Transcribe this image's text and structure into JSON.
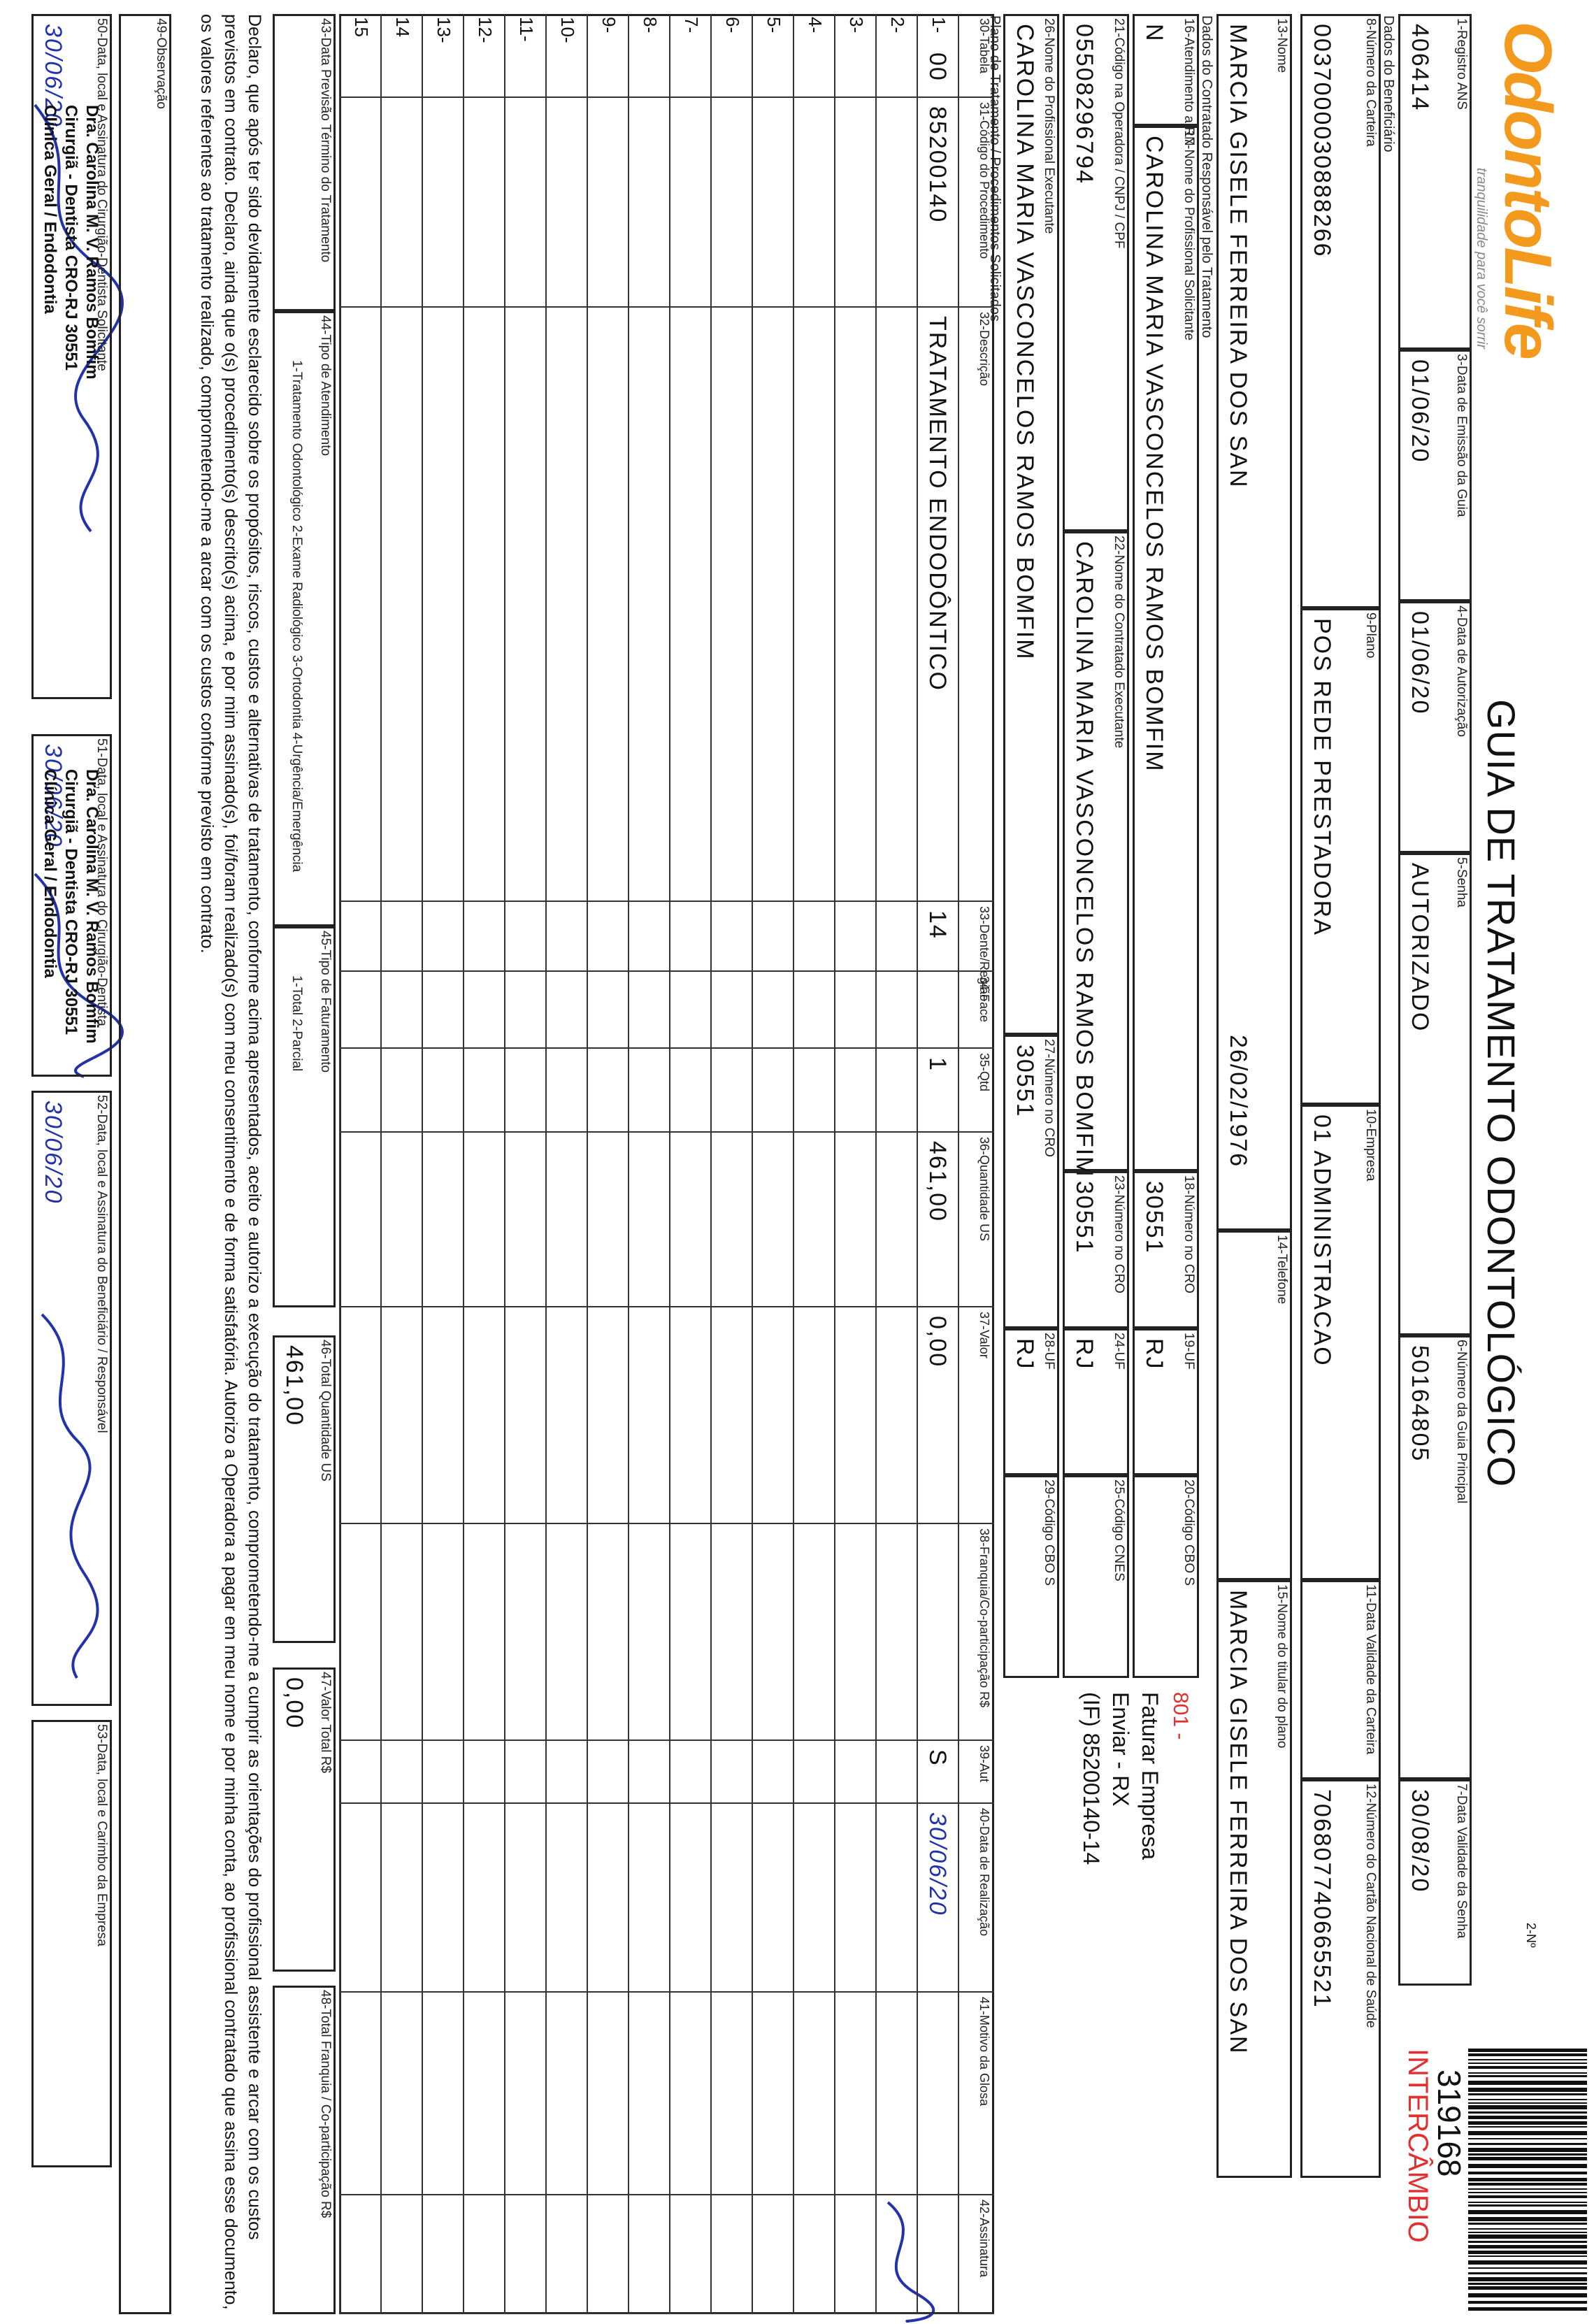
{
  "header": {
    "logo": "OdontoLife",
    "tagline": "tranquilidade para você sorrir",
    "title": "GUIA DE TRATAMENTO ODONTOLÓGICO",
    "number_label": "2-Nº",
    "number": "319168",
    "tag": "INTERCÂMBIO"
  },
  "sections": {
    "beneficiary": "Dados do Beneficiário",
    "contractor": "Dados do Contratado Responsável pelo Tratamento",
    "plan": "Plano de Tratamento / Procedimentos Solicitados"
  },
  "fields": [
    {
      "label": "1-Registro ANS",
      "value": "406414"
    },
    {
      "label": "3-Data de Emissão da Guia",
      "value": "01/06/20"
    },
    {
      "label": "4-Data de Autorização",
      "value": "01/06/20"
    },
    {
      "label": "5-Senha",
      "value": "AUTORIZADO"
    },
    {
      "label": "6-Número da Guia Principal",
      "value": "50164805"
    },
    {
      "label": "7-Data Validade da Senha",
      "value": "30/08/20"
    },
    {
      "label": "8-Número da Carteira",
      "value": "0037000030888266"
    },
    {
      "label": "9-Plano",
      "value": "POS REDE PRESTADORA"
    },
    {
      "label": "10-Empresa",
      "value": "01 ADMINISTRACAO"
    },
    {
      "label": "11-Data Validade da Carteira"
    },
    {
      "label": "12-Número do Cartão Nacional de Saúde",
      "value": "706807740665521"
    },
    {
      "label": "13-Nome",
      "value": "MARCIA GISELE FERREIRA DOS SAN",
      "extra": "26/02/1976"
    },
    {
      "label": "14-Telefone"
    },
    {
      "label": "15-Nome do titular do plano",
      "value": "MARCIA GISELE FERREIRA DOS SAN"
    },
    {
      "label": "16-Atendimento a RN",
      "value": "N"
    },
    {
      "label": "17-Nome do Profissional Solicitante",
      "value": "CAROLINA MARIA VASCONCELOS RAMOS BOMFIM"
    },
    {
      "label": "18-Número no CRO",
      "value": "30551"
    },
    {
      "label": "19-UF",
      "value": "RJ"
    },
    {
      "label": "20-Código CBO S"
    },
    {
      "label": "21-Código na Operadora / CNPJ / CPF",
      "value": "05508296794"
    },
    {
      "label": "22-Nome do Contratado Executante",
      "value": "CAROLINA MARIA VASCONCELOS RAMOS BOMFIM"
    },
    {
      "label": "23-Número no CRO",
      "value": "30551"
    },
    {
      "label": "24-UF",
      "value": "RJ"
    },
    {
      "label": "25-Código CNES"
    },
    {
      "label": "26-Nome do Profissional Executante",
      "value": "CAROLINA MARIA VASCONCELOS RAMOS BOMFIM"
    },
    {
      "label": "27-Número no CRO",
      "value": "30551"
    },
    {
      "label": "28-UF",
      "value": "RJ"
    },
    {
      "label": "29-Código CBO S"
    },
    {
      "label": "43-Data Previsão Término do Tratamento"
    },
    {
      "label": "44-Tipo de Atendimento",
      "options": "1-Tratamento Odontológico  2-Exame Radiológico  3-Ortodontia  4-Urgência/Emergência"
    },
    {
      "label": "45-Tipo de Faturamento",
      "options": "1-Total  2-Parcial"
    },
    {
      "label": "46-Total Quantidade US",
      "value": "461,00"
    },
    {
      "label": "47-Valor Total R$",
      "value": "0,00"
    },
    {
      "label": "48-Total Franquia / Co-participação R$"
    },
    {
      "label": "49-Observação"
    },
    {
      "label": "50-Data, local e Assinatura do Cirurgião-Dentista Solicitante",
      "value": "30/06/20"
    },
    {
      "label": "51-Data, local e Assinatura do Cirurgião-Dentista",
      "value": "30/06/20"
    },
    {
      "label": "52-Data, local e Assinatura do Beneficiário / Responsável",
      "value": "30/06/20"
    },
    {
      "label": "53-Data, local e Carimbo da Empresa"
    }
  ],
  "notes": [
    "801 -",
    "Faturar Empresa",
    "Enviar - RX",
    "(IF) 85200140-14"
  ],
  "table": {
    "columns": [
      "30-Tabela",
      "31-Código do Procedimento",
      "32-Descrição",
      "33-Dente/Região",
      "34-Face",
      "35-Qtd",
      "36-Quantidade US",
      "37-Valor",
      "38-Franquia/Co-participação R$",
      "39-Aut",
      "40-Data de Realização",
      "41-Motivo da Glosa",
      "42-Assinatura"
    ],
    "rows": [
      {
        "number": "1-",
        "table": "00",
        "code": "85200140",
        "description": "TRATAMENTO ENDODÔNTICO",
        "tooth": "14",
        "qty": "1",
        "qty_us": "461,00",
        "value": "0,00",
        "aut": "S",
        "date": "30/06/20"
      },
      {
        "number": "2-"
      },
      {
        "number": "3-"
      },
      {
        "number": "4-"
      },
      {
        "number": "5-"
      },
      {
        "number": "6-"
      },
      {
        "number": "7-"
      },
      {
        "number": "8-"
      },
      {
        "number": "9-"
      },
      {
        "number": "10-"
      },
      {
        "number": "11-"
      },
      {
        "number": "12-"
      },
      {
        "number": "13-"
      },
      {
        "number": "14"
      },
      {
        "number": "15"
      }
    ]
  },
  "declaration": "Declaro, que após ter sido devidamente esclarecido sobre os propósitos, riscos, custos e alternativas de tratamento, conforme acima apresentados, aceito e autorizo a execução do tratamento, comprometendo-me a cumprir as orientações do profissional assistente e arcar com os custos previstos em contrato. Declaro, ainda que o(s) procedimento(s) descrito(s) acima, e por mim assinado(s), foi/foram realizado(s) com meu consentimento e de forma satisfatória. Autorizo a Operadora a pagar em meu nome e por minha conta, ao profissional contratado que assina esse documento, os valores referentes ao tratamento realizado, comprometendo-me a arcar com os custos conforme previsto em contrato.",
  "stamp": [
    "Dra. Carolina M. V. Ramos Bomfim",
    "Cirurgiã - Dentista CRO-RJ 30551",
    "Clínica Geral / Endodontia"
  ]
}
